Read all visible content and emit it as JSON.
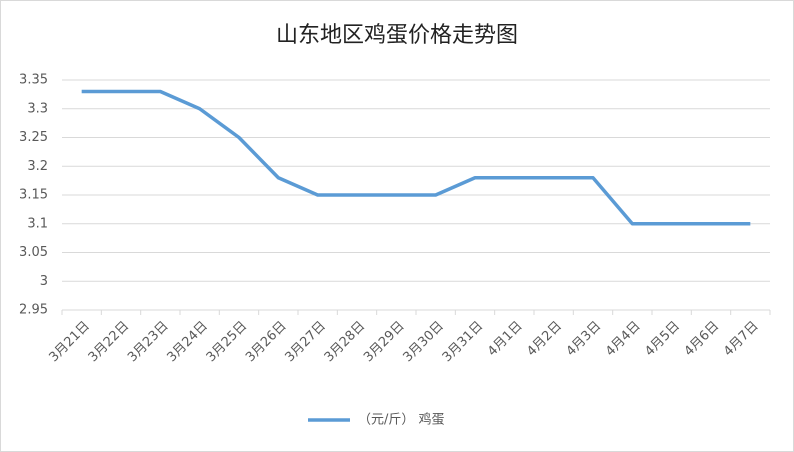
{
  "chart_data": {
    "type": "line",
    "title": "山东地区鸡蛋价格走势图",
    "categories": [
      "3月21日",
      "3月22日",
      "3月23日",
      "3月24日",
      "3月25日",
      "3月26日",
      "3月27日",
      "3月28日",
      "3月29日",
      "3月30日",
      "3月31日",
      "4月1日",
      "4月2日",
      "4月3日",
      "4月4日",
      "4月5日",
      "4月6日",
      "4月7日"
    ],
    "series": [
      {
        "name": "（元/斤） 鸡蛋",
        "color": "#5b9bd5",
        "values": [
          3.33,
          3.33,
          3.33,
          3.3,
          3.25,
          3.18,
          3.15,
          3.15,
          3.15,
          3.15,
          3.18,
          3.18,
          3.18,
          3.18,
          3.1,
          3.1,
          3.1,
          3.1
        ]
      }
    ],
    "ylim": [
      2.95,
      3.35
    ],
    "yticks": [
      2.95,
      3,
      3.05,
      3.1,
      3.15,
      3.2,
      3.25,
      3.3,
      3.35
    ],
    "grid": true,
    "legend": "bottom"
  }
}
